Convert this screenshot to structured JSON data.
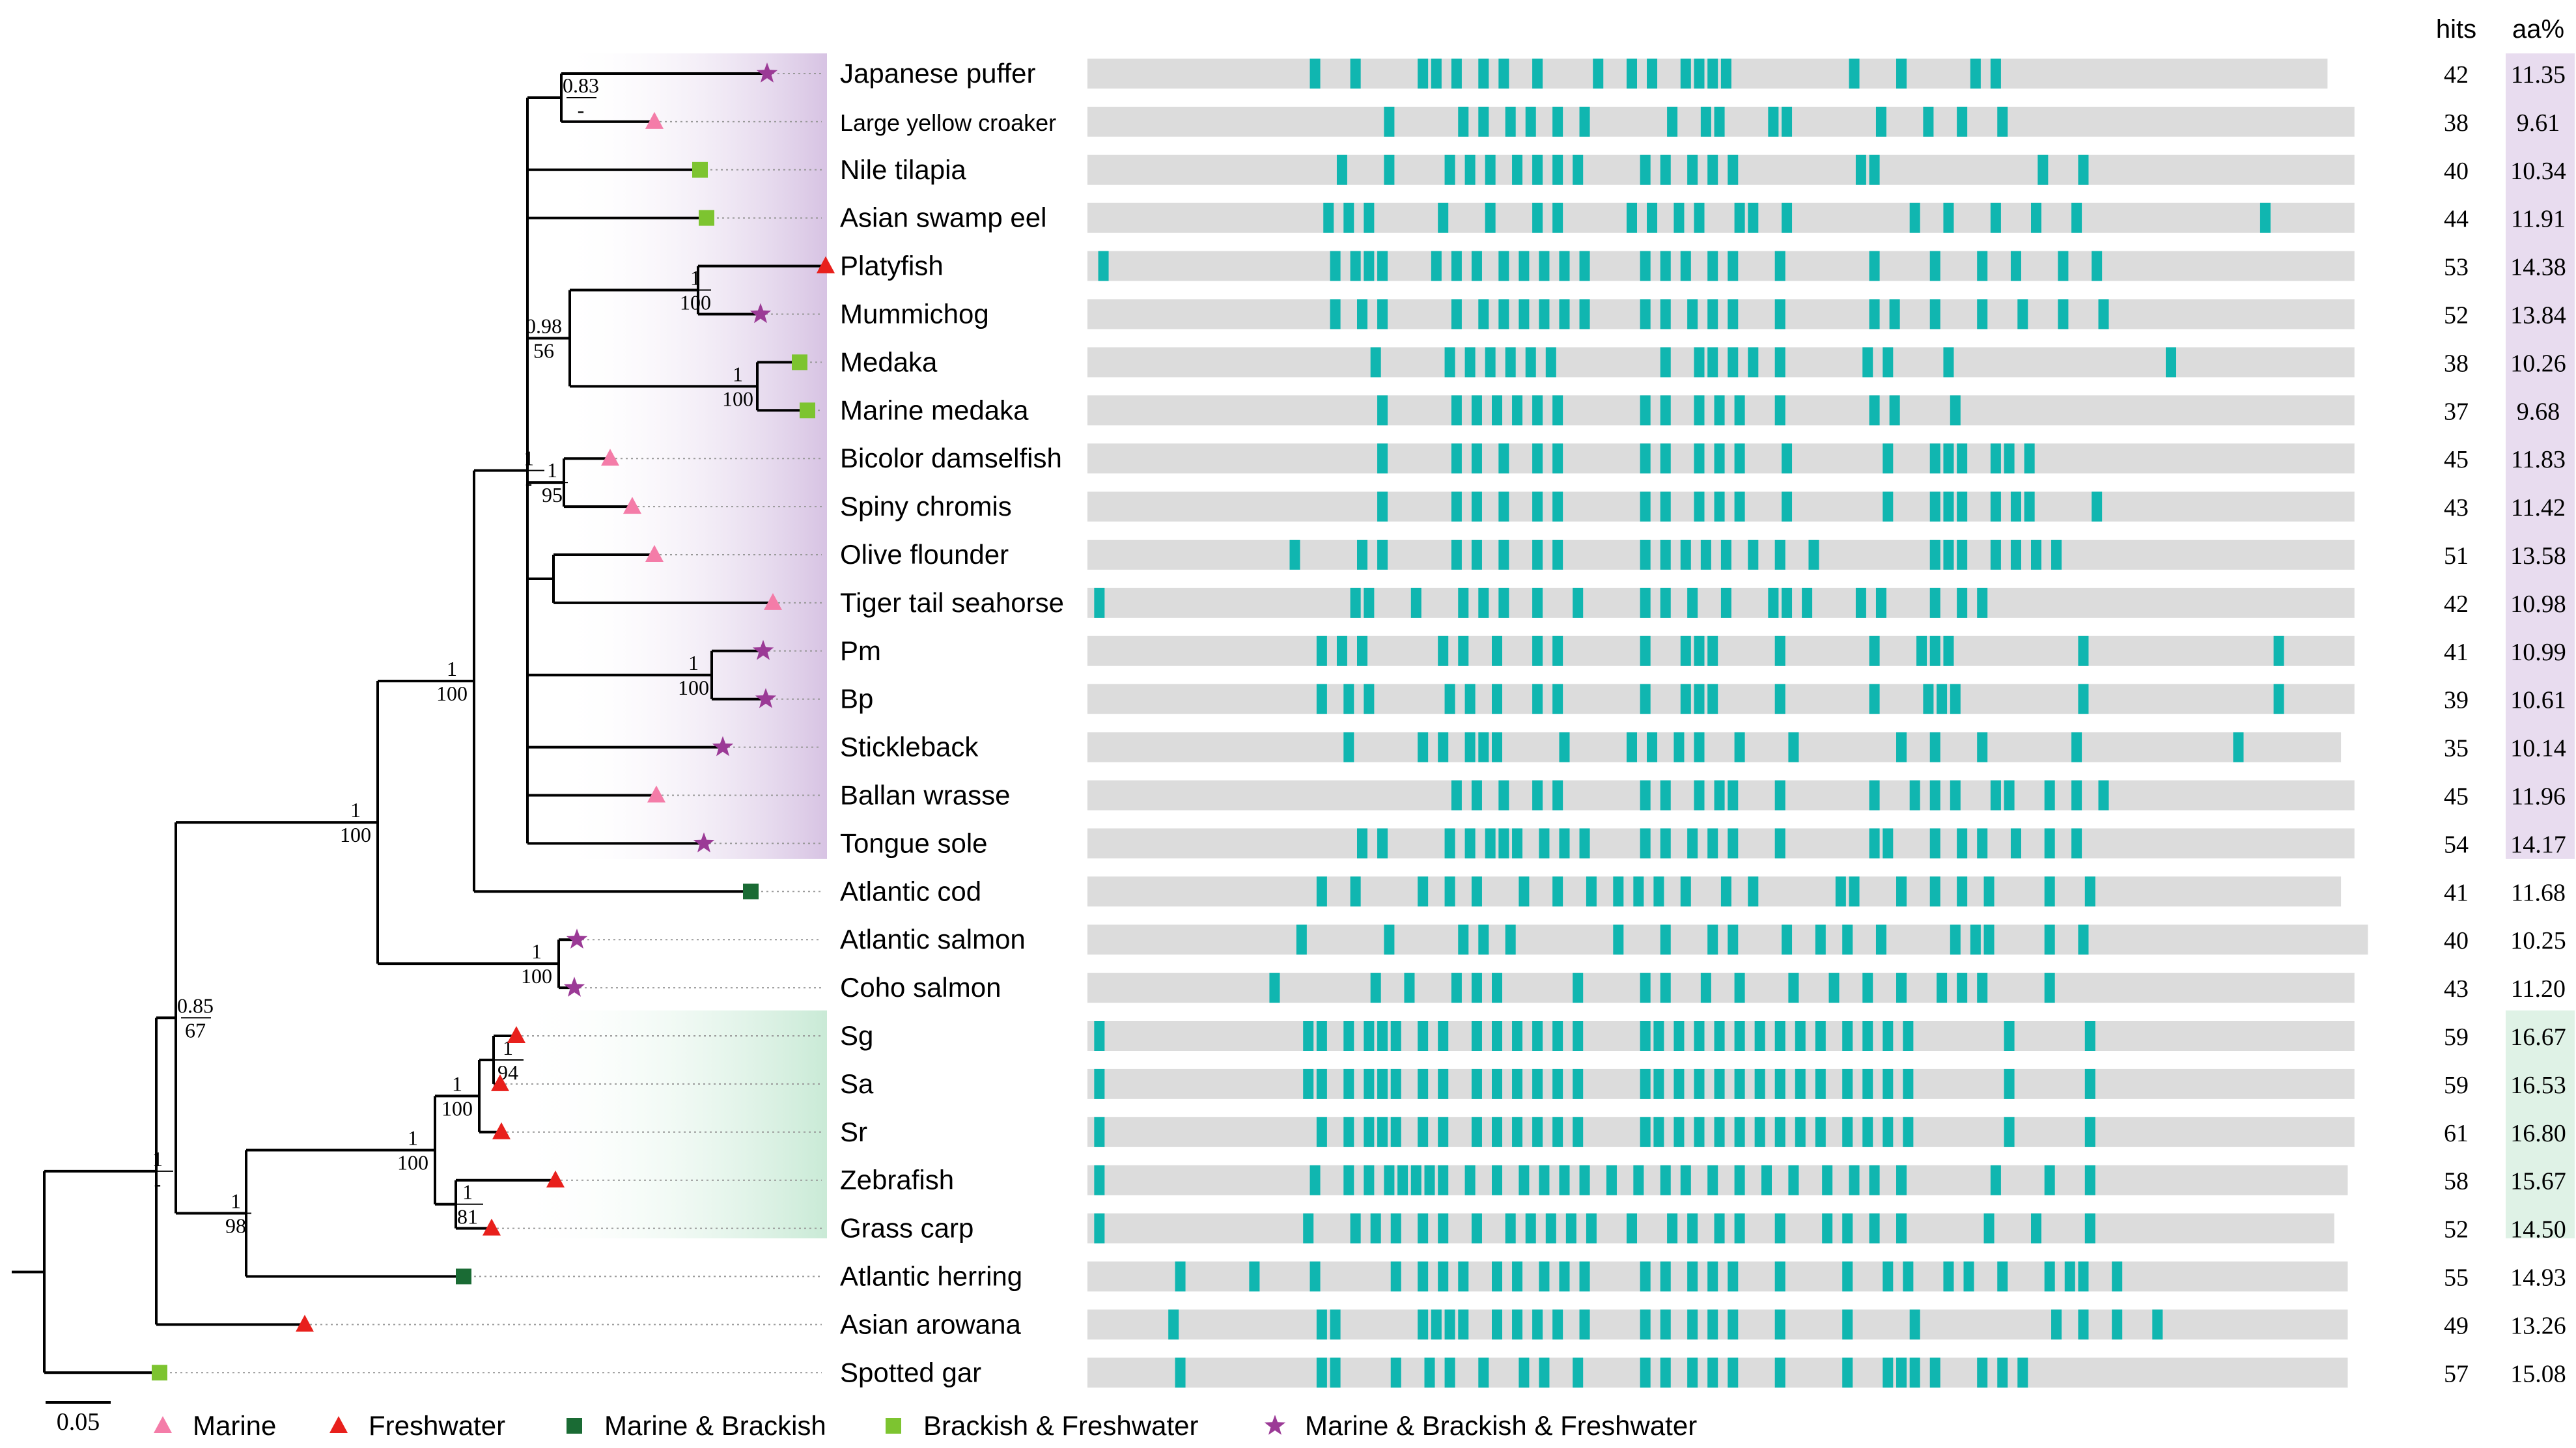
{
  "chart_data": {
    "type": "phylogenetic_tree_with_hit_map",
    "headers": {
      "hits": "hits",
      "aa": "aa%"
    },
    "scale_bar": "0.05",
    "legend": [
      {
        "label": "Marine",
        "marker": "triangle",
        "color": "#f47ca8"
      },
      {
        "label": "Freshwater",
        "marker": "triangle",
        "color": "#e8201c"
      },
      {
        "label": "Marine & Brackish",
        "marker": "square",
        "color": "#1a6b34"
      },
      {
        "label": "Brackish & Freshwater",
        "marker": "square",
        "color": "#7dc430"
      },
      {
        "label": "Marine & Brackish & Freshwater",
        "marker": "star",
        "color": "#9b3a96"
      }
    ],
    "colors": {
      "hit": "#10b6b0",
      "bar": "#dcdcdc",
      "clade_purple": "#d7c3e3",
      "clade_green": "#c9ead6"
    },
    "species": [
      {
        "name": "Japanese puffer",
        "hits": "42",
        "aa": "11.35",
        "habitat": "mbf",
        "bar_end": 0.92,
        "hit_positions": [
          0.165,
          0.195,
          0.245,
          0.255,
          0.27,
          0.29,
          0.305,
          0.33,
          0.375,
          0.4,
          0.415,
          0.44,
          0.45,
          0.46,
          0.47,
          0.565,
          0.6,
          0.655,
          0.67
        ]
      },
      {
        "name": "Large yellow croaker",
        "hits": "38",
        "aa": "9.61",
        "habitat": "marine",
        "small": true,
        "bar_end": 0.94,
        "hit_positions": [
          0.22,
          0.275,
          0.29,
          0.31,
          0.325,
          0.345,
          0.365,
          0.43,
          0.455,
          0.465,
          0.505,
          0.515,
          0.585,
          0.62,
          0.645,
          0.675
        ]
      },
      {
        "name": "Nile tilapia",
        "hits": "40",
        "aa": "10.34",
        "habitat": "bf",
        "bar_end": 0.94,
        "hit_positions": [
          0.185,
          0.22,
          0.265,
          0.28,
          0.295,
          0.315,
          0.33,
          0.345,
          0.36,
          0.41,
          0.425,
          0.445,
          0.46,
          0.475,
          0.57,
          0.58,
          0.705,
          0.735
        ]
      },
      {
        "name": "Asian swamp eel",
        "hits": "44",
        "aa": "11.91",
        "habitat": "bf",
        "bar_end": 0.94,
        "hit_positions": [
          0.175,
          0.19,
          0.205,
          0.26,
          0.295,
          0.33,
          0.345,
          0.4,
          0.415,
          0.435,
          0.45,
          0.48,
          0.49,
          0.515,
          0.61,
          0.635,
          0.67,
          0.7,
          0.73,
          0.87
        ]
      },
      {
        "name": "Platyfish",
        "hits": "53",
        "aa": "14.38",
        "habitat": "fresh",
        "bar_end": 0.94,
        "hit_positions": [
          0.008,
          0.18,
          0.195,
          0.205,
          0.215,
          0.255,
          0.27,
          0.285,
          0.305,
          0.32,
          0.335,
          0.35,
          0.365,
          0.41,
          0.425,
          0.44,
          0.46,
          0.475,
          0.51,
          0.58,
          0.625,
          0.66,
          0.685,
          0.72,
          0.745
        ]
      },
      {
        "name": "Mummichog",
        "hits": "52",
        "aa": "13.84",
        "habitat": "mbf",
        "bar_end": 0.94,
        "hit_positions": [
          0.18,
          0.2,
          0.215,
          0.27,
          0.29,
          0.305,
          0.32,
          0.335,
          0.35,
          0.365,
          0.41,
          0.425,
          0.445,
          0.46,
          0.475,
          0.51,
          0.58,
          0.595,
          0.625,
          0.66,
          0.69,
          0.72,
          0.75
        ]
      },
      {
        "name": "Medaka",
        "hits": "38",
        "aa": "10.26",
        "habitat": "bf",
        "bar_end": 0.94,
        "hit_positions": [
          0.21,
          0.265,
          0.28,
          0.295,
          0.31,
          0.325,
          0.34,
          0.425,
          0.45,
          0.46,
          0.475,
          0.49,
          0.51,
          0.575,
          0.59,
          0.635,
          0.8
        ]
      },
      {
        "name": "Marine medaka",
        "hits": "37",
        "aa": "9.68",
        "habitat": "bf",
        "bar_end": 0.94,
        "hit_positions": [
          0.215,
          0.27,
          0.285,
          0.3,
          0.315,
          0.33,
          0.345,
          0.41,
          0.425,
          0.45,
          0.465,
          0.48,
          0.51,
          0.58,
          0.595,
          0.64
        ]
      },
      {
        "name": "Bicolor damselfish",
        "hits": "45",
        "aa": "11.83",
        "habitat": "marine",
        "bar_end": 0.94,
        "hit_positions": [
          0.215,
          0.27,
          0.285,
          0.305,
          0.33,
          0.345,
          0.41,
          0.425,
          0.45,
          0.465,
          0.48,
          0.515,
          0.59,
          0.625,
          0.635,
          0.645,
          0.67,
          0.68,
          0.695
        ]
      },
      {
        "name": "Spiny chromis",
        "hits": "43",
        "aa": "11.42",
        "habitat": "marine",
        "bar_end": 0.94,
        "hit_positions": [
          0.215,
          0.27,
          0.285,
          0.305,
          0.33,
          0.345,
          0.41,
          0.425,
          0.45,
          0.465,
          0.48,
          0.515,
          0.59,
          0.625,
          0.635,
          0.645,
          0.67,
          0.685,
          0.695,
          0.745
        ]
      },
      {
        "name": "Olive flounder",
        "hits": "51",
        "aa": "13.58",
        "habitat": "marine",
        "bar_end": 0.94,
        "hit_positions": [
          0.15,
          0.2,
          0.215,
          0.27,
          0.285,
          0.305,
          0.33,
          0.345,
          0.41,
          0.425,
          0.44,
          0.455,
          0.47,
          0.49,
          0.51,
          0.535,
          0.625,
          0.635,
          0.645,
          0.67,
          0.685,
          0.7,
          0.715
        ]
      },
      {
        "name": "Tiger tail seahorse",
        "hits": "42",
        "aa": "10.98",
        "habitat": "marine",
        "bar_end": 0.94,
        "hit_positions": [
          0.005,
          0.195,
          0.205,
          0.24,
          0.275,
          0.29,
          0.305,
          0.33,
          0.36,
          0.41,
          0.425,
          0.445,
          0.47,
          0.505,
          0.515,
          0.53,
          0.57,
          0.585,
          0.625,
          0.645,
          0.66
        ]
      },
      {
        "name": "Pm",
        "hits": "41",
        "aa": "10.99",
        "habitat": "mbf",
        "bar_end": 0.94,
        "hit_positions": [
          0.17,
          0.185,
          0.2,
          0.26,
          0.275,
          0.3,
          0.33,
          0.345,
          0.41,
          0.44,
          0.45,
          0.46,
          0.51,
          0.58,
          0.615,
          0.625,
          0.635,
          0.735,
          0.88
        ]
      },
      {
        "name": "Bp",
        "hits": "39",
        "aa": "10.61",
        "habitat": "mbf",
        "bar_end": 0.94,
        "hit_positions": [
          0.17,
          0.19,
          0.205,
          0.265,
          0.28,
          0.3,
          0.33,
          0.345,
          0.41,
          0.44,
          0.45,
          0.46,
          0.51,
          0.58,
          0.62,
          0.63,
          0.64,
          0.735,
          0.88
        ]
      },
      {
        "name": "Stickleback",
        "hits": "35",
        "aa": "10.14",
        "habitat": "mbf",
        "bar_end": 0.93,
        "hit_positions": [
          0.19,
          0.245,
          0.26,
          0.28,
          0.29,
          0.3,
          0.35,
          0.4,
          0.415,
          0.435,
          0.45,
          0.48,
          0.52,
          0.6,
          0.625,
          0.66,
          0.73,
          0.85
        ]
      },
      {
        "name": "Ballan wrasse",
        "hits": "45",
        "aa": "11.96",
        "habitat": "marine",
        "bar_end": 0.94,
        "hit_positions": [
          0.27,
          0.285,
          0.305,
          0.33,
          0.345,
          0.41,
          0.425,
          0.45,
          0.465,
          0.475,
          0.51,
          0.58,
          0.61,
          0.625,
          0.64,
          0.67,
          0.68,
          0.71,
          0.73,
          0.75
        ]
      },
      {
        "name": "Tongue sole",
        "hits": "54",
        "aa": "14.17",
        "habitat": "mbf",
        "bar_end": 0.94,
        "hit_positions": [
          0.2,
          0.215,
          0.265,
          0.28,
          0.295,
          0.305,
          0.315,
          0.335,
          0.35,
          0.365,
          0.41,
          0.425,
          0.445,
          0.46,
          0.475,
          0.51,
          0.58,
          0.59,
          0.625,
          0.645,
          0.66,
          0.685,
          0.71,
          0.73
        ]
      },
      {
        "name": "Atlantic cod",
        "hits": "41",
        "aa": "11.68",
        "habitat": "mb",
        "bar_end": 0.93,
        "hit_positions": [
          0.17,
          0.195,
          0.245,
          0.265,
          0.285,
          0.32,
          0.345,
          0.37,
          0.39,
          0.405,
          0.42,
          0.44,
          0.47,
          0.49,
          0.555,
          0.565,
          0.6,
          0.625,
          0.645,
          0.665,
          0.71,
          0.74
        ]
      },
      {
        "name": "Atlantic salmon",
        "hits": "40",
        "aa": "10.25",
        "habitat": "mbf",
        "bar_end": 0.95,
        "hit_positions": [
          0.155,
          0.22,
          0.275,
          0.29,
          0.31,
          0.39,
          0.425,
          0.46,
          0.475,
          0.515,
          0.54,
          0.56,
          0.585,
          0.64,
          0.655,
          0.665,
          0.71,
          0.735
        ]
      },
      {
        "name": "Coho salmon",
        "hits": "43",
        "aa": "11.20",
        "habitat": "mbf",
        "bar_end": 0.94,
        "hit_positions": [
          0.135,
          0.21,
          0.235,
          0.27,
          0.285,
          0.3,
          0.36,
          0.41,
          0.425,
          0.455,
          0.48,
          0.52,
          0.55,
          0.575,
          0.6,
          0.63,
          0.645,
          0.66,
          0.71
        ]
      },
      {
        "name": "Sg",
        "hits": "59",
        "aa": "16.67",
        "habitat": "fresh",
        "bar_end": 0.94,
        "hit_positions": [
          0.005,
          0.16,
          0.17,
          0.19,
          0.205,
          0.215,
          0.225,
          0.245,
          0.26,
          0.285,
          0.3,
          0.315,
          0.33,
          0.345,
          0.36,
          0.41,
          0.42,
          0.435,
          0.45,
          0.465,
          0.48,
          0.495,
          0.51,
          0.525,
          0.54,
          0.56,
          0.575,
          0.59,
          0.605,
          0.68,
          0.74
        ]
      },
      {
        "name": "Sa",
        "hits": "59",
        "aa": "16.53",
        "habitat": "fresh",
        "bar_end": 0.94,
        "hit_positions": [
          0.005,
          0.16,
          0.17,
          0.19,
          0.205,
          0.215,
          0.225,
          0.245,
          0.26,
          0.285,
          0.3,
          0.315,
          0.33,
          0.345,
          0.36,
          0.41,
          0.42,
          0.435,
          0.45,
          0.465,
          0.48,
          0.495,
          0.51,
          0.525,
          0.54,
          0.56,
          0.575,
          0.59,
          0.605,
          0.68,
          0.74
        ]
      },
      {
        "name": "Sr",
        "hits": "61",
        "aa": "16.80",
        "habitat": "fresh",
        "bar_end": 0.94,
        "hit_positions": [
          0.005,
          0.17,
          0.19,
          0.205,
          0.215,
          0.225,
          0.245,
          0.26,
          0.285,
          0.3,
          0.315,
          0.33,
          0.345,
          0.36,
          0.41,
          0.42,
          0.435,
          0.45,
          0.465,
          0.48,
          0.495,
          0.51,
          0.525,
          0.54,
          0.56,
          0.575,
          0.59,
          0.605,
          0.68,
          0.74
        ]
      },
      {
        "name": "Zebrafish",
        "hits": "58",
        "aa": "15.67",
        "habitat": "fresh",
        "bar_end": 0.935,
        "hit_positions": [
          0.005,
          0.165,
          0.19,
          0.205,
          0.22,
          0.23,
          0.24,
          0.25,
          0.26,
          0.28,
          0.3,
          0.32,
          0.335,
          0.35,
          0.365,
          0.385,
          0.405,
          0.425,
          0.44,
          0.46,
          0.48,
          0.5,
          0.52,
          0.545,
          0.565,
          0.58,
          0.6,
          0.67,
          0.71,
          0.74
        ]
      },
      {
        "name": "Grass carp",
        "hits": "52",
        "aa": "14.50",
        "habitat": "fresh",
        "bar_end": 0.925,
        "hit_positions": [
          0.005,
          0.16,
          0.195,
          0.21,
          0.225,
          0.245,
          0.26,
          0.285,
          0.31,
          0.325,
          0.34,
          0.355,
          0.37,
          0.4,
          0.43,
          0.445,
          0.465,
          0.48,
          0.51,
          0.545,
          0.56,
          0.58,
          0.6,
          0.665,
          0.7,
          0.74
        ]
      },
      {
        "name": "Atlantic herring",
        "hits": "55",
        "aa": "14.93",
        "habitat": "mb",
        "bar_end": 0.935,
        "hit_positions": [
          0.065,
          0.12,
          0.165,
          0.225,
          0.245,
          0.26,
          0.275,
          0.3,
          0.315,
          0.335,
          0.35,
          0.365,
          0.41,
          0.425,
          0.445,
          0.46,
          0.475,
          0.51,
          0.56,
          0.59,
          0.605,
          0.635,
          0.65,
          0.675,
          0.71,
          0.725,
          0.735,
          0.76
        ]
      },
      {
        "name": "Asian arowana",
        "hits": "49",
        "aa": "13.26",
        "habitat": "fresh",
        "bar_end": 0.935,
        "hit_positions": [
          0.06,
          0.17,
          0.18,
          0.245,
          0.255,
          0.265,
          0.275,
          0.3,
          0.315,
          0.33,
          0.345,
          0.365,
          0.41,
          0.425,
          0.445,
          0.46,
          0.475,
          0.51,
          0.56,
          0.61,
          0.715,
          0.735,
          0.76,
          0.79
        ]
      },
      {
        "name": "Spotted gar",
        "hits": "57",
        "aa": "15.08",
        "habitat": "bf",
        "bar_end": 0.935,
        "hit_positions": [
          0.065,
          0.17,
          0.18,
          0.225,
          0.25,
          0.265,
          0.29,
          0.32,
          0.335,
          0.36,
          0.41,
          0.425,
          0.445,
          0.46,
          0.475,
          0.51,
          0.56,
          0.59,
          0.6,
          0.61,
          0.625,
          0.66,
          0.675,
          0.69
        ]
      }
    ],
    "support_values": [
      {
        "id": "n_puffer_croaker",
        "top": "0.83",
        "bottom": "-"
      },
      {
        "id": "n_platy_mummi",
        "top": "1",
        "bottom": "100"
      },
      {
        "id": "n_platy_medaka",
        "top": "0.98",
        "bottom": "56"
      },
      {
        "id": "n_medaka",
        "top": "1",
        "bottom": "100"
      },
      {
        "id": "n_damsel",
        "top": "1",
        "bottom": "95"
      },
      {
        "id": "n_percomorph",
        "top": "1",
        "bottom": "-"
      },
      {
        "id": "n_pm_bp",
        "top": "1",
        "bottom": "100"
      },
      {
        "id": "n_cod_group",
        "top": "1",
        "bottom": "100"
      },
      {
        "id": "n_euteleost",
        "top": "1",
        "bottom": "100"
      },
      {
        "id": "n_salmon",
        "top": "1",
        "bottom": "100"
      },
      {
        "id": "n_clupeo_eutel",
        "top": "0.85",
        "bottom": "67"
      },
      {
        "id": "n_sg_sa",
        "top": "1",
        "bottom": "94"
      },
      {
        "id": "n_s_clade",
        "top": "1",
        "bottom": "100"
      },
      {
        "id": "n_cyprinid",
        "top": "1",
        "bottom": "100"
      },
      {
        "id": "n_zebra_carp",
        "top": "1",
        "bottom": "81"
      },
      {
        "id": "n_otocephala",
        "top": "1",
        "bottom": "98"
      },
      {
        "id": "n_teleost",
        "top": "1",
        "bottom": "-"
      }
    ]
  }
}
